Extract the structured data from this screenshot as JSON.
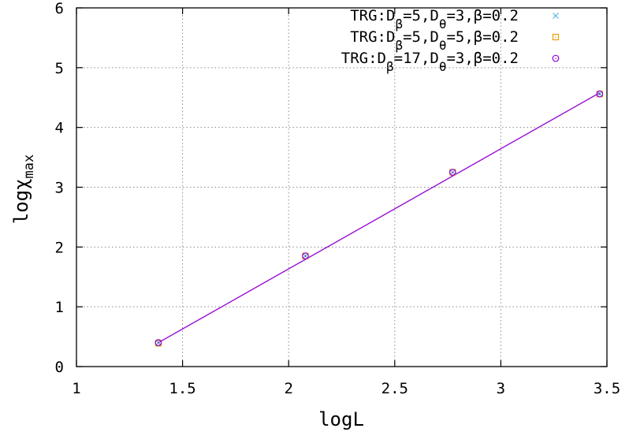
{
  "chart_data": {
    "type": "scatter",
    "xlabel": "logL",
    "ylabel": "logχmax",
    "ylabel_base": "logχ",
    "ylabel_sub": "max",
    "xlim": [
      1,
      3.5
    ],
    "ylim": [
      0,
      6
    ],
    "xticks": [
      "1",
      "1.5",
      "2",
      "2.5",
      "3",
      "3.5"
    ],
    "yticks": [
      "0",
      "1",
      "2",
      "3",
      "4",
      "5",
      "6"
    ],
    "grid": true,
    "legend_position": "top-right",
    "series": [
      {
        "name": "TRG:Dβ=5,Dθ=3,β=0.2",
        "legend_parts": [
          "TRG:D",
          "β",
          "=5,D",
          "θ",
          "=3,β=0.2"
        ],
        "marker": "cross",
        "color": "#56b4e9",
        "x": [
          1.386,
          2.079,
          2.773,
          3.466
        ],
        "y": [
          0.4,
          1.85,
          3.25,
          4.56
        ]
      },
      {
        "name": "TRG:Dβ=5,Dθ=5,β=0.2",
        "legend_parts": [
          "TRG:D",
          "β",
          "=5,D",
          "θ",
          "=5,β=0.2"
        ],
        "marker": "square",
        "color": "#e69f00",
        "x": [
          1.386,
          2.079,
          2.773,
          3.466
        ],
        "y": [
          0.39,
          1.85,
          3.25,
          4.56
        ]
      },
      {
        "name": "TRG:Dβ=17,Dθ=3,β=0.2",
        "legend_parts": [
          "TRG:D",
          "β",
          "=17,D",
          "θ",
          "=3,β=0.2"
        ],
        "marker": "circle",
        "color": "#9400d3",
        "x": [
          1.386,
          2.079,
          2.773,
          3.466
        ],
        "y": [
          0.4,
          1.85,
          3.25,
          4.56
        ]
      }
    ],
    "fit_line": {
      "color": "#9400d3",
      "x": [
        1.386,
        3.466
      ],
      "y": [
        0.4,
        4.58
      ]
    }
  }
}
